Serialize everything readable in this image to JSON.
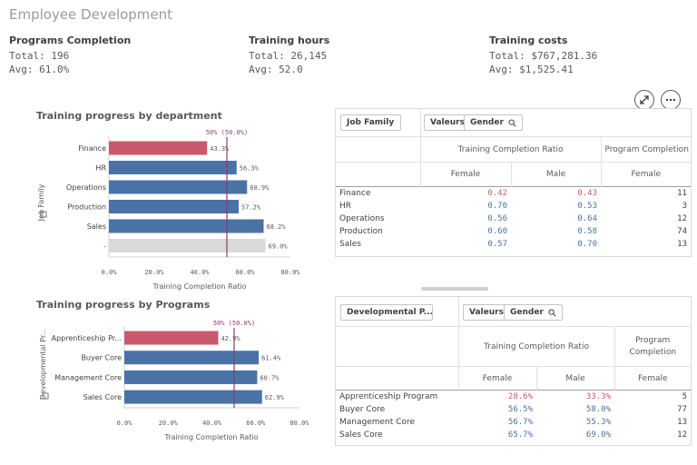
{
  "page_title": "Employee Development",
  "kpis": [
    {
      "title": "Programs Completion",
      "line1": "Total: 196",
      "line2": "Avg: 61.0%"
    },
    {
      "title": "Training hours",
      "line1": "Total: 26,145",
      "line2": "Avg: 52.0"
    },
    {
      "title": "Training costs",
      "line1": "Total: $767,281.36",
      "line2": "Avg: $1,525.41"
    }
  ],
  "chart1": {
    "title": "Training progress by department",
    "ylabel": "Job Family",
    "xlabel": "Training Completion Ratio",
    "ref_label": "50% (50.0%)",
    "categories": [
      "Finance",
      "HR",
      "Operations",
      "Production",
      "Sales",
      "-"
    ],
    "value_labels": [
      "43.3%",
      "56.3%",
      "60.9%",
      "57.2%",
      "68.2%",
      "69.0%"
    ],
    "ticks": [
      "0.0%",
      "20.0%",
      "40.0%",
      "60.0%",
      "80.0%"
    ]
  },
  "chart2": {
    "title": "Training progress by Programs",
    "ylabel": "Developmental Pr...",
    "xlabel": "Training Completion Ratio",
    "ref_label": "50% (50.0%)",
    "categories": [
      "Apprenticeship Pr...",
      "Buyer Core",
      "Management Core",
      "Sales Core"
    ],
    "value_labels": [
      "42.9%",
      "61.4%",
      "60.7%",
      "62.9%"
    ],
    "ticks": [
      "0.0%",
      "20.0%",
      "40.0%",
      "60.0%",
      "80.0%"
    ]
  },
  "chart_data": [
    {
      "type": "bar",
      "orientation": "horizontal",
      "title": "Training progress by department",
      "categories": [
        "Finance",
        "HR",
        "Operations",
        "Production",
        "Sales",
        "-"
      ],
      "values": [
        43.3,
        56.3,
        60.9,
        57.2,
        68.2,
        69.0
      ],
      "colors": [
        "#c85a6c",
        "#4a72a6",
        "#4a72a6",
        "#4a72a6",
        "#4a72a6",
        "#d9d9d9"
      ],
      "xlabel": "Training Completion Ratio",
      "ylabel": "Job Family",
      "xlim": [
        0,
        80
      ],
      "reference_line": {
        "value": 50,
        "label": "50% (50.0%)"
      }
    },
    {
      "type": "bar",
      "orientation": "horizontal",
      "title": "Training progress by Programs",
      "categories": [
        "Apprenticeship Pr...",
        "Buyer Core",
        "Management Core",
        "Sales Core"
      ],
      "values": [
        42.9,
        61.4,
        60.7,
        62.9
      ],
      "colors": [
        "#c85a6c",
        "#4a72a6",
        "#4a72a6",
        "#4a72a6"
      ],
      "xlabel": "Training Completion Ratio",
      "ylabel": "Developmental Pr...",
      "xlim": [
        0,
        80
      ],
      "reference_line": {
        "value": 50,
        "label": "50% (50.0%)"
      }
    }
  ],
  "table1": {
    "filter": "Job Family",
    "dim1": "Valeurs",
    "dim2": "Gender",
    "measure1": "Training Completion Ratio",
    "measure2": "Program Completion",
    "sub": [
      "Female",
      "Male",
      "Female"
    ],
    "rows": [
      {
        "label": "Finance",
        "c1": "0.42",
        "c2": "0.43",
        "c3": "11"
      },
      {
        "label": "HR",
        "c1": "0.70",
        "c2": "0.53",
        "c3": "3"
      },
      {
        "label": "Operations",
        "c1": "0.56",
        "c2": "0.64",
        "c3": "12"
      },
      {
        "label": "Production",
        "c1": "0.60",
        "c2": "0.58",
        "c3": "74"
      },
      {
        "label": "Sales",
        "c1": "0.57",
        "c2": "0.70",
        "c3": "13"
      }
    ]
  },
  "table2": {
    "filter": "Developmental P...",
    "dim1": "Valeurs",
    "dim2": "Gender",
    "measure1": "Training Completion Ratio",
    "measure2a": "Program",
    "measure2b": "Completion",
    "sub": [
      "Female",
      "Male",
      "Female"
    ],
    "rows": [
      {
        "label": "Apprenticeship Program",
        "c1": "28.6%",
        "c2": "33.3%",
        "c3": "5"
      },
      {
        "label": "Buyer Core",
        "c1": "56.5%",
        "c2": "58.0%",
        "c3": "77"
      },
      {
        "label": "Management Core",
        "c1": "56.7%",
        "c2": "55.3%",
        "c3": "13"
      },
      {
        "label": "Sales Core",
        "c1": "65.7%",
        "c2": "69.0%",
        "c3": "12"
      }
    ]
  },
  "colors": {
    "red": "#c85a6c",
    "blue": "#4a72a6",
    "grey": "#d9d9d9",
    "ref": "#8e3b6e"
  }
}
